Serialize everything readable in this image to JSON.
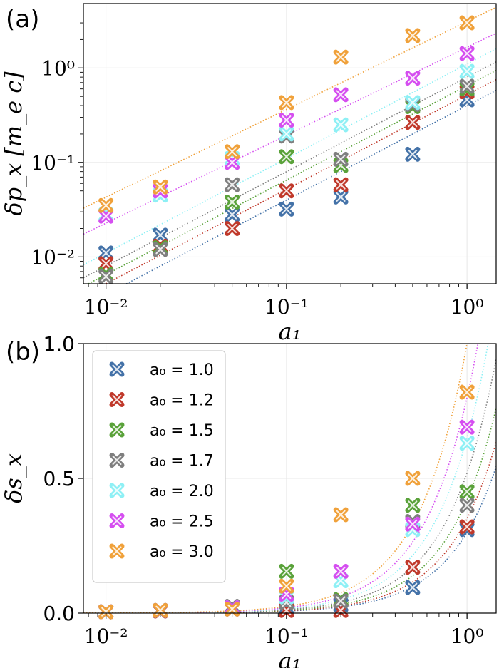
{
  "colors": {
    "1.0": "#4472a8",
    "1.2": "#c0392b",
    "1.5": "#5aa23a",
    "1.7": "#7f7f7f",
    "2.0": "#8ef0f5",
    "2.5": "#d54ef0",
    "3.0": "#f0a13a"
  },
  "chart_data": [
    {
      "type": "scatter",
      "panel_label": "(a)",
      "xlabel": "a₁",
      "ylabel": "δp_x [m_e c]",
      "xscale": "log",
      "yscale": "log",
      "xlim": [
        0.0075,
        1.45
      ],
      "ylim": [
        0.0052,
        4.8
      ],
      "x_ticks": [
        "10⁻²",
        "10⁻¹",
        "10⁰"
      ],
      "y_ticks": [
        "10⁻²",
        "10⁻¹",
        "10⁰"
      ],
      "grid": true,
      "x": [
        0.01,
        0.02,
        0.05,
        0.1,
        0.2,
        0.5,
        1.0
      ],
      "series": [
        {
          "a0": "1.0",
          "values": [
            0.011,
            0.017,
            0.028,
            0.032,
            0.043,
            0.122,
            0.46
          ],
          "fit_coeff": 0.4,
          "fit_exp": 1.0
        },
        {
          "a0": "1.2",
          "values": [
            0.0085,
            0.013,
            0.02,
            0.05,
            0.058,
            0.265,
            0.56
          ],
          "fit_coeff": 0.52,
          "fit_exp": 1.0
        },
        {
          "a0": "1.5",
          "values": [
            0.0065,
            0.0125,
            0.038,
            0.115,
            0.093,
            0.39,
            0.6
          ],
          "fit_coeff": 0.65,
          "fit_exp": 1.0
        },
        {
          "a0": "1.7",
          "values": [
            0.0062,
            0.012,
            0.058,
            0.19,
            0.108,
            0.41,
            0.64
          ],
          "fit_coeff": 0.8,
          "fit_exp": 1.0
        },
        {
          "a0": "2.0",
          "values": [
            0.028,
            0.045,
            0.11,
            0.2,
            0.25,
            0.43,
            0.92
          ],
          "fit_coeff": 1.1,
          "fit_exp": 1.0
        },
        {
          "a0": "2.5",
          "values": [
            0.027,
            0.05,
            0.1,
            0.28,
            0.52,
            0.78,
            1.42
          ],
          "fit_coeff": 1.65,
          "fit_exp": 0.93
        },
        {
          "a0": "3.0",
          "values": [
            0.035,
            0.055,
            0.13,
            0.43,
            1.3,
            2.2,
            3.0
          ],
          "fit_coeff": 3.1,
          "fit_exp": 0.93
        }
      ]
    },
    {
      "type": "scatter",
      "panel_label": "(b)",
      "xlabel": "a₁",
      "ylabel": "δs_x",
      "xscale": "log",
      "yscale": "linear",
      "xlim": [
        0.0075,
        1.45
      ],
      "ylim": [
        0.0,
        1.0
      ],
      "x_ticks": [
        "10⁻²",
        "10⁻¹",
        "10⁰"
      ],
      "y_ticks": [
        "0.0",
        "0.5",
        "1.0"
      ],
      "grid": true,
      "legend_placement": "upper-left",
      "x": [
        0.01,
        0.02,
        0.05,
        0.1,
        0.2,
        0.5,
        1.0
      ],
      "series": [
        {
          "a0": "1.0",
          "values": [
            0.005,
            0.008,
            0.015,
            0.02,
            0.03,
            0.095,
            0.31
          ],
          "fit_coeff": 0.3,
          "fit_exp": 1.6
        },
        {
          "a0": "1.2",
          "values": [
            0.005,
            0.008,
            0.015,
            0.01,
            0.01,
            0.17,
            0.32
          ],
          "fit_coeff": 0.35,
          "fit_exp": 1.6
        },
        {
          "a0": "1.5",
          "values": [
            0.005,
            0.01,
            0.02,
            0.155,
            0.05,
            0.4,
            0.45
          ],
          "fit_coeff": 0.42,
          "fit_exp": 1.6
        },
        {
          "a0": "1.7",
          "values": [
            0.005,
            0.01,
            0.025,
            0.04,
            0.045,
            0.34,
            0.4
          ],
          "fit_coeff": 0.52,
          "fit_exp": 1.6
        },
        {
          "a0": "2.0",
          "values": [
            0.005,
            0.01,
            0.02,
            0.06,
            0.12,
            0.31,
            0.63
          ],
          "fit_coeff": 0.65,
          "fit_exp": 1.6
        },
        {
          "a0": "2.5",
          "values": [
            0.005,
            0.01,
            0.02,
            0.07,
            0.155,
            0.33,
            0.69
          ],
          "fit_coeff": 0.8,
          "fit_exp": 1.6
        },
        {
          "a0": "3.0",
          "values": [
            0.005,
            0.01,
            0.015,
            0.1,
            0.365,
            0.5,
            0.82
          ],
          "fit_coeff": 1.0,
          "fit_exp": 1.6
        }
      ]
    }
  ],
  "legend": [
    {
      "a0": "1.0",
      "label": "a₀ = 1.0"
    },
    {
      "a0": "1.2",
      "label": "a₀ = 1.2"
    },
    {
      "a0": "1.5",
      "label": "a₀ = 1.5"
    },
    {
      "a0": "1.7",
      "label": "a₀ = 1.7"
    },
    {
      "a0": "2.0",
      "label": "a₀ = 2.0"
    },
    {
      "a0": "2.5",
      "label": "a₀ = 2.5"
    },
    {
      "a0": "3.0",
      "label": "a₀ = 3.0"
    }
  ]
}
